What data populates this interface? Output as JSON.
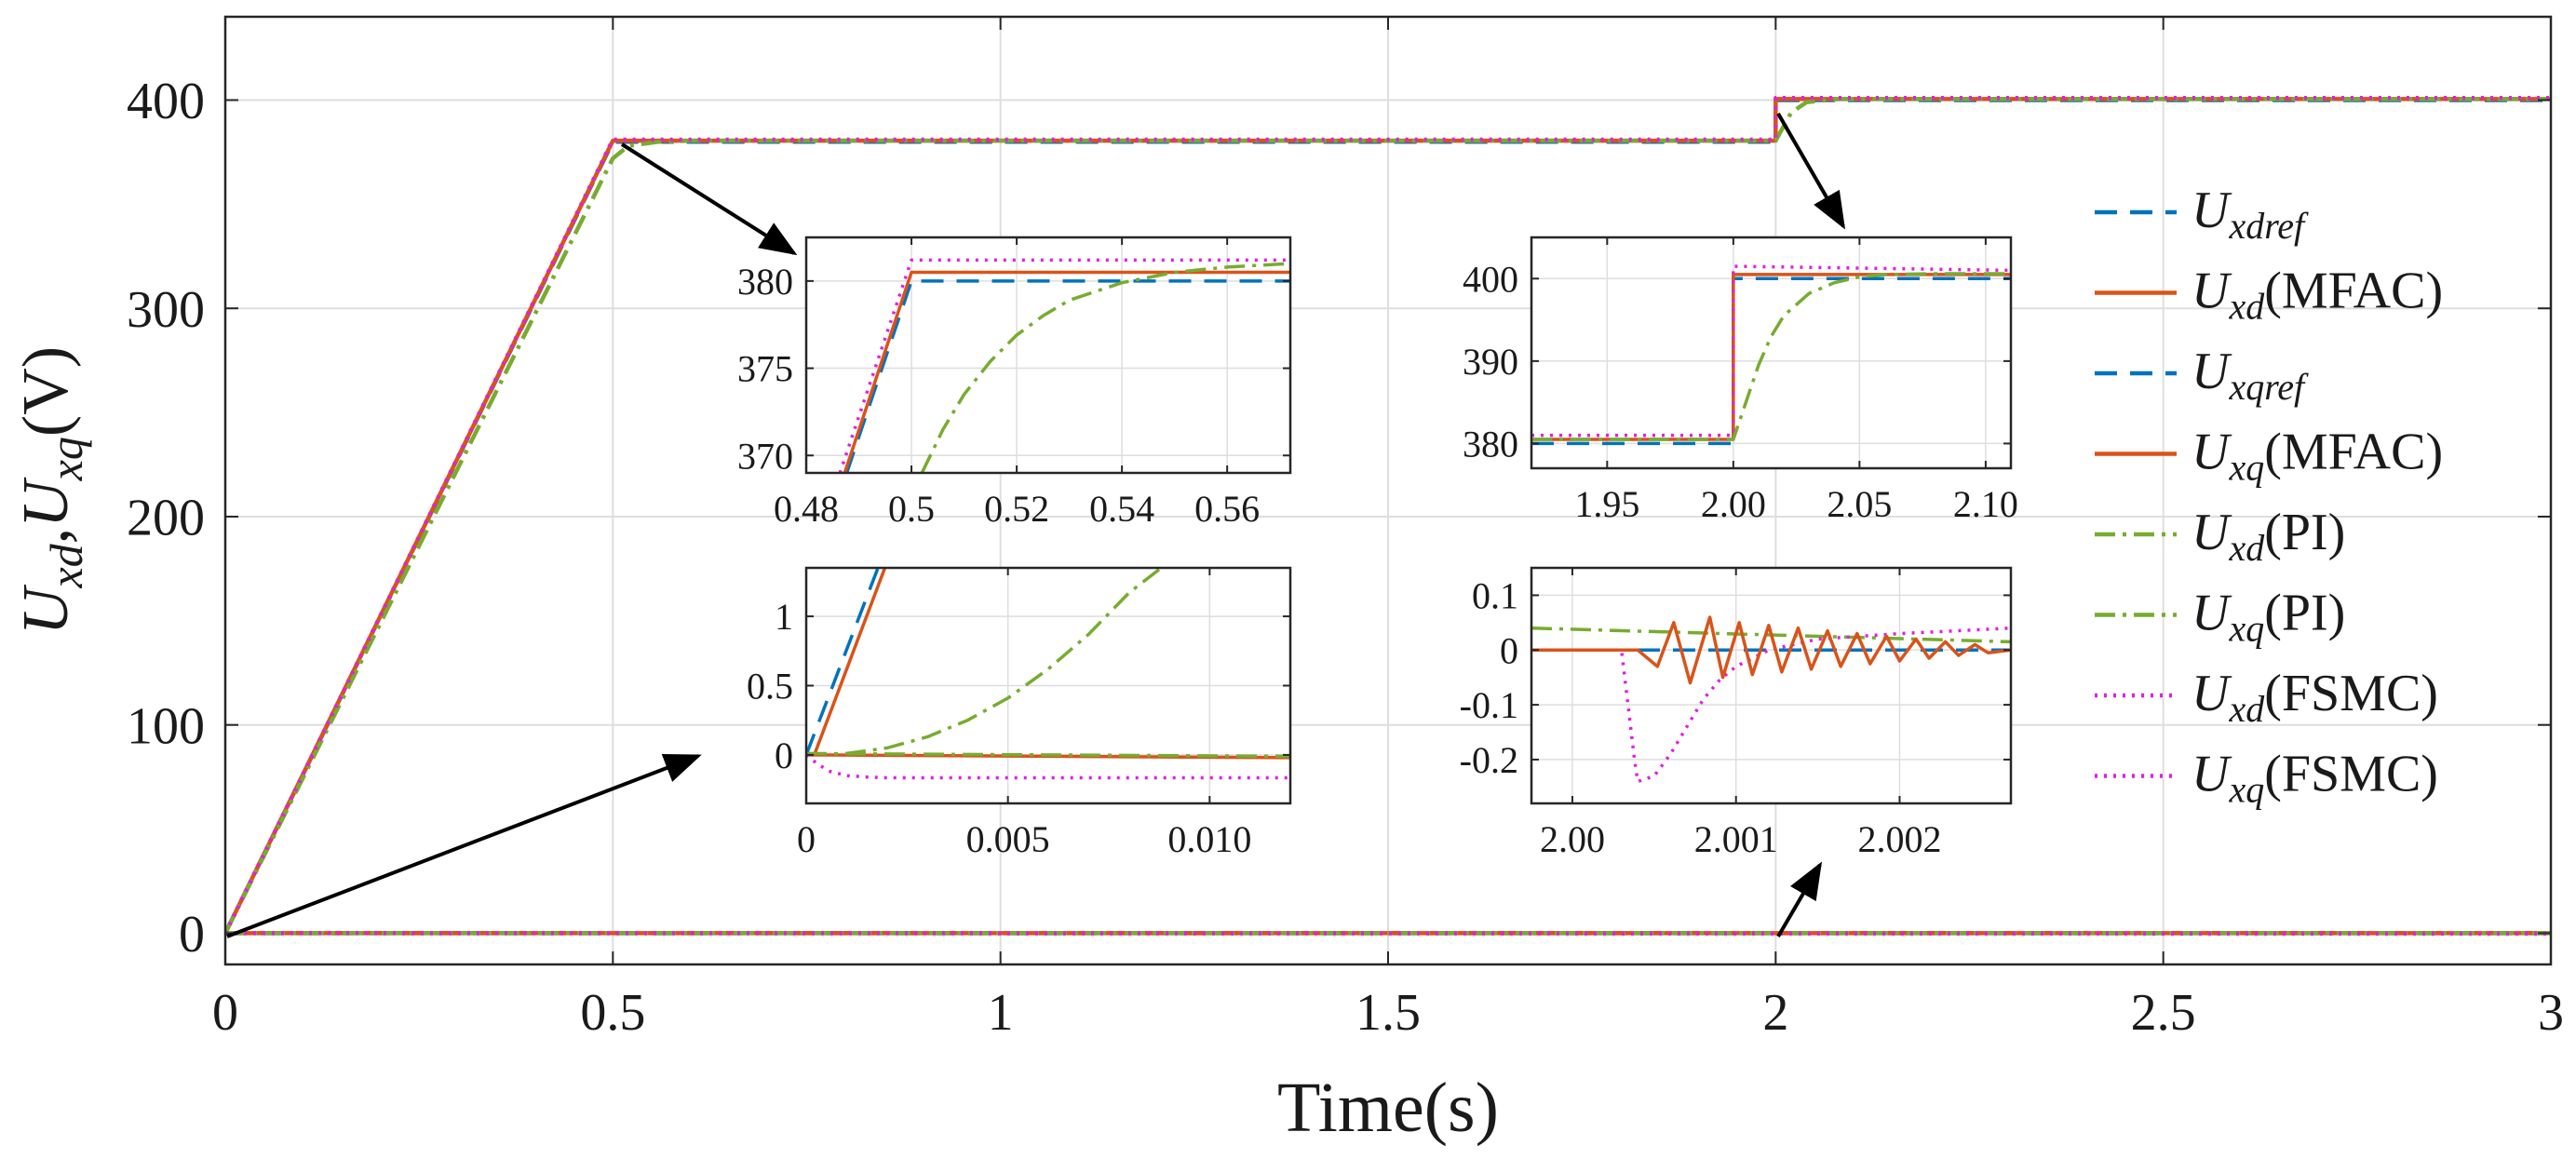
{
  "chart_data": [
    {
      "id": "main",
      "type": "line",
      "title": "",
      "xlabel": "Time(s)",
      "ylabel": "U_xd,U_xq(V)",
      "xlim": [
        0,
        3
      ],
      "ylim": [
        -15,
        440
      ],
      "xticks": [
        0,
        0.5,
        1,
        1.5,
        2,
        2.5,
        3
      ],
      "xtick_labels": [
        "0",
        "0.5",
        "1",
        "1.5",
        "2",
        "2.5",
        "3"
      ],
      "yticks": [
        0,
        100,
        200,
        300,
        400
      ],
      "ytick_labels": [
        "0",
        "100",
        "200",
        "300",
        "400"
      ],
      "grid": true,
      "series": [
        {
          "key": "ref",
          "name": "U_xdref",
          "style": "dashed",
          "color": "#0072bd",
          "x": [
            0,
            0.5,
            2.0,
            2.0,
            3.0
          ],
          "y": [
            0,
            380,
            380,
            400,
            400
          ]
        },
        {
          "key": "mfac",
          "name": "U_xd(MFAC)",
          "style": "solid",
          "color": "#d95319",
          "x": [
            0,
            0.5,
            2.0,
            2.0,
            3.0
          ],
          "y": [
            0,
            380.5,
            380.5,
            400.5,
            400.5
          ]
        },
        {
          "key": "pi",
          "name": "U_xd(PI)",
          "style": "dashdot",
          "color": "#77ac30",
          "x": [
            0,
            0.5,
            0.52,
            0.56,
            0.6,
            2.0,
            2.02,
            2.04,
            2.08,
            3.0
          ],
          "y": [
            0,
            372,
            378,
            380,
            380.5,
            380.5,
            394,
            399,
            400.5,
            400.5
          ]
        },
        {
          "key": "fsmc",
          "name": "U_xd(FSMC)",
          "style": "dotted",
          "color": "#e020e0",
          "x": [
            0,
            0.5,
            2.0,
            2.0,
            3.0
          ],
          "y": [
            0,
            381,
            381,
            401,
            401
          ]
        },
        {
          "key": "ref",
          "name": "U_xqref",
          "style": "dashed",
          "color": "#0072bd",
          "x": [
            0,
            3
          ],
          "y": [
            0,
            0
          ]
        },
        {
          "key": "mfac",
          "name": "U_xq(MFAC)",
          "style": "solid",
          "color": "#d95319",
          "x": [
            0,
            3
          ],
          "y": [
            0,
            0
          ]
        },
        {
          "key": "pi",
          "name": "U_xq(PI)",
          "style": "dashdot",
          "color": "#77ac30",
          "x": [
            0,
            3
          ],
          "y": [
            0,
            0
          ]
        },
        {
          "key": "fsmc",
          "name": "U_xq(FSMC)",
          "style": "dotted",
          "color": "#e020e0",
          "x": [
            0,
            3
          ],
          "y": [
            0,
            -0.2
          ]
        }
      ]
    },
    {
      "id": "zoom_startup_ud",
      "type": "line",
      "xlim": [
        0.48,
        0.572
      ],
      "ylim": [
        369,
        382.5
      ],
      "xticks": [
        0.48,
        0.5,
        0.52,
        0.54,
        0.56
      ],
      "xtick_labels": [
        "0.48",
        "0.5",
        "0.52",
        "0.54",
        "0.56"
      ],
      "yticks": [
        370,
        375,
        380
      ],
      "ytick_labels": [
        "370",
        "375",
        "380"
      ],
      "grid": true,
      "series": [
        {
          "key": "ref",
          "x": [
            0.4877,
            0.5,
            0.572
          ],
          "y": [
            369,
            380,
            380
          ]
        },
        {
          "key": "mfac",
          "x": [
            0.4873,
            0.5,
            0.572
          ],
          "y": [
            369,
            380.5,
            380.5
          ]
        },
        {
          "key": "fsmc",
          "x": [
            0.4864,
            0.5,
            0.572
          ],
          "y": [
            369,
            381.2,
            381.2
          ]
        },
        {
          "key": "pi",
          "x": [
            0.502,
            0.506,
            0.51,
            0.515,
            0.52,
            0.525,
            0.53,
            0.54,
            0.55,
            0.56,
            0.572
          ],
          "y": [
            369,
            371.5,
            373.5,
            375.4,
            376.9,
            378,
            378.9,
            379.9,
            380.5,
            380.8,
            381
          ]
        }
      ]
    },
    {
      "id": "zoom_step_ud",
      "type": "line",
      "xlim": [
        1.92,
        2.11
      ],
      "ylim": [
        377,
        405
      ],
      "xticks": [
        1.95,
        2.0,
        2.05,
        2.1
      ],
      "xtick_labels": [
        "1.95",
        "2.00",
        "2.05",
        "2.10"
      ],
      "yticks": [
        380,
        390,
        400
      ],
      "ytick_labels": [
        "380",
        "390",
        "400"
      ],
      "grid": true,
      "series": [
        {
          "key": "ref",
          "x": [
            1.92,
            2.0,
            2.0,
            2.11
          ],
          "y": [
            380,
            380,
            400,
            400
          ]
        },
        {
          "key": "mfac",
          "x": [
            1.92,
            2.0,
            2.0,
            2.11
          ],
          "y": [
            380.5,
            380.5,
            400.5,
            400.5
          ]
        },
        {
          "key": "fsmc",
          "x": [
            1.92,
            2.0,
            2.0,
            2.11
          ],
          "y": [
            381,
            381,
            401.5,
            401
          ]
        },
        {
          "key": "pi",
          "x": [
            1.92,
            2.0,
            2.005,
            2.01,
            2.015,
            2.02,
            2.03,
            2.04,
            2.05,
            2.06,
            2.08,
            2.11
          ],
          "y": [
            380.5,
            380.5,
            385,
            389.5,
            393,
            395.5,
            398.2,
            399.5,
            400.2,
            400.5,
            400.6,
            400.6
          ]
        }
      ]
    },
    {
      "id": "zoom_startup_uq",
      "type": "line",
      "xlim": [
        0,
        0.012
      ],
      "ylim": [
        -0.35,
        1.35
      ],
      "xticks": [
        0,
        0.005,
        0.01
      ],
      "xtick_labels": [
        "0",
        "0.005",
        "0.010"
      ],
      "yticks": [
        0,
        0.5,
        1
      ],
      "ytick_labels": [
        "0",
        "0.5",
        "1"
      ],
      "grid": true,
      "series": [
        {
          "key": "ref",
          "x": [
            0,
            0.00178
          ],
          "y": [
            0,
            1.35
          ]
        },
        {
          "key": "mfac",
          "x": [
            0,
            0.0002,
            0.00195
          ],
          "y": [
            0,
            0,
            1.35
          ]
        },
        {
          "key": "pi",
          "x": [
            0,
            0.001,
            0.002,
            0.003,
            0.004,
            0.005,
            0.006,
            0.007,
            0.008,
            0.0088
          ],
          "y": [
            0,
            0.01,
            0.05,
            0.13,
            0.25,
            0.41,
            0.62,
            0.87,
            1.17,
            1.35
          ]
        },
        {
          "key": "mfac",
          "x": [
            0,
            0.012
          ],
          "y": [
            0,
            -0.02
          ]
        },
        {
          "key": "pi",
          "x": [
            0,
            0.012
          ],
          "y": [
            0.01,
            -0.01
          ]
        },
        {
          "key": "fsmc",
          "x": [
            0,
            0.0003,
            0.0006,
            0.001,
            0.0015,
            0.002,
            0.012
          ],
          "y": [
            0,
            -0.07,
            -0.12,
            -0.15,
            -0.16,
            -0.165,
            -0.165
          ]
        }
      ]
    },
    {
      "id": "zoom_step_uq",
      "type": "line",
      "xlim": [
        1.99975,
        2.00268
      ],
      "ylim": [
        -0.28,
        0.15
      ],
      "xticks": [
        2.0,
        2.001,
        2.002
      ],
      "xtick_labels": [
        "2.00",
        "2.001",
        "2.002"
      ],
      "yticks": [
        0.1,
        0,
        -0.1,
        -0.2
      ],
      "ytick_labels": [
        "0.1",
        "0",
        "-0.1",
        "-0.2"
      ],
      "grid": true,
      "series": [
        {
          "key": "ref",
          "x": [
            1.99975,
            2.00268
          ],
          "y": [
            0,
            0
          ]
        },
        {
          "key": "pi",
          "x": [
            1.99975,
            2.00268
          ],
          "y": [
            0.04,
            0.015
          ]
        },
        {
          "key": "fsmc",
          "x": [
            1.99975,
            2.0003,
            2.00038,
            2.0004,
            2.0005,
            2.0006,
            2.0007,
            2.0008,
            2.0009,
            2.001,
            2.0012,
            2.0015,
            2.002,
            2.00268
          ],
          "y": [
            0,
            0,
            -0.2,
            -0.24,
            -0.23,
            -0.19,
            -0.14,
            -0.09,
            -0.055,
            -0.03,
            0,
            0.02,
            0.03,
            0.04
          ]
        },
        {
          "key": "mfac",
          "x": [
            1.99975,
            2.0004,
            2.00052,
            2.00062,
            2.00072,
            2.00084,
            2.00092,
            2.00102,
            2.0011,
            2.0012,
            2.00128,
            2.00138,
            2.00146,
            2.00156,
            2.00164,
            2.00174,
            2.00182,
            2.00192,
            2.002,
            2.0021,
            2.00218,
            2.00228,
            2.00236,
            2.00246,
            2.00254,
            2.00268
          ],
          "y": [
            0,
            0,
            -0.03,
            0.05,
            -0.06,
            0.06,
            -0.05,
            0.05,
            -0.045,
            0.045,
            -0.04,
            0.04,
            -0.035,
            0.035,
            -0.03,
            0.03,
            -0.025,
            0.025,
            -0.02,
            0.02,
            -0.015,
            0.015,
            -0.01,
            0.01,
            -0.005,
            0
          ]
        }
      ]
    }
  ],
  "legend": {
    "placement": "right",
    "entries": [
      {
        "key": "ref",
        "main": "U",
        "sub": "xdref",
        "suffix": ""
      },
      {
        "key": "mfac",
        "main": "U",
        "sub": "xd",
        "suffix": "(MFAC)"
      },
      {
        "key": "ref",
        "main": "U",
        "sub": "xqref",
        "suffix": ""
      },
      {
        "key": "mfac",
        "main": "U",
        "sub": "xq",
        "suffix": "(MFAC)"
      },
      {
        "key": "pi",
        "main": "U",
        "sub": "xd",
        "suffix": "(PI)"
      },
      {
        "key": "pi",
        "main": "U",
        "sub": "xq",
        "suffix": "(PI)"
      },
      {
        "key": "fsmc",
        "main": "U",
        "sub": "xd",
        "suffix": "(FSMC)"
      },
      {
        "key": "fsmc",
        "main": "U",
        "sub": "xq",
        "suffix": "(FSMC)"
      }
    ]
  },
  "styles": {
    "ref": {
      "color": "#0072bd",
      "dash": "24,14"
    },
    "mfac": {
      "color": "#d95319",
      "dash": ""
    },
    "pi": {
      "color": "#77ac30",
      "dash": "22,8,4,8"
    },
    "fsmc": {
      "color": "#e020e0",
      "dash": "3,7"
    }
  },
  "axis_labels": {
    "xlabel": "Time(s)",
    "ylabel_u1": "U",
    "ylabel_s1": "xd",
    "ylabel_sep": ",",
    "ylabel_u2": "U",
    "ylabel_s2": "xq",
    "ylabel_unit": "(V)"
  }
}
